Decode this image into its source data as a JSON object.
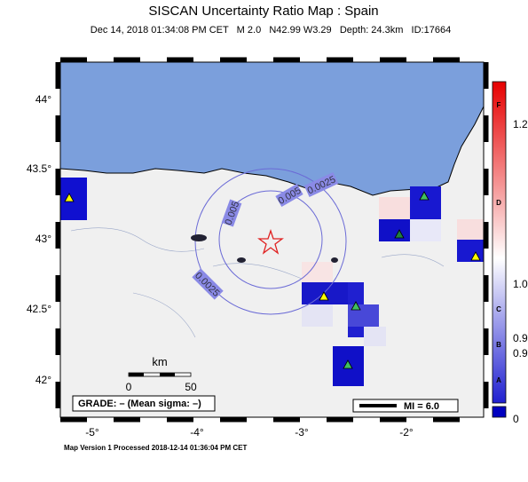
{
  "header": {
    "title": "SISCAN Uncertainty Ratio Map : Spain",
    "subtitle": "Dec 14, 2018 01:34:08 PM CET   M 2.0   N42.99 W3.29   Depth: 24.3km   ID:17664"
  },
  "map": {
    "lat_labels": [
      "44°",
      "43.5°",
      "43°",
      "42.5°",
      "42°"
    ],
    "lon_labels": [
      "-5°",
      "-4°",
      "-3°",
      "-2°"
    ],
    "contour_labels": [
      "0.0025",
      "0.005",
      "0.005",
      "0.0025"
    ],
    "scale": {
      "unit": "km",
      "start": "0",
      "end": "50"
    },
    "grade": "GRADE: – (Mean sigma: –)",
    "mi": "MI = 6.0"
  },
  "colorbar": {
    "letters": [
      "F",
      "D",
      "C",
      "B",
      "A"
    ],
    "numbers": [
      "1.2",
      "1.0",
      "0.9",
      "0.9",
      "0"
    ]
  },
  "footer": "Map Version 1 Processed 2018-12-14 01:36:04 PM CET"
}
